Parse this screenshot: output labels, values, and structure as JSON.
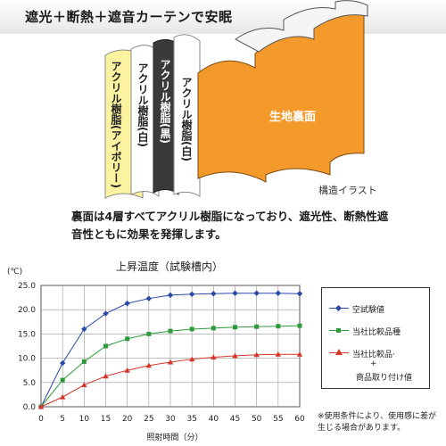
{
  "banner": {
    "title": "遮光＋断熱＋遮音カーテンで安眠"
  },
  "structure": {
    "layers": [
      {
        "label": "アクリル樹脂(アイボリー)",
        "color": "#fbf3a0"
      },
      {
        "label": "アクリル樹脂(白)",
        "color": "#ffffff"
      },
      {
        "label": "アクリル樹脂(黒)",
        "color": "#3a3a3a"
      },
      {
        "label": "アクリル樹脂(白)",
        "color": "#ffffff"
      },
      {
        "label": "生地裏面",
        "color": "#f39a2b"
      }
    ],
    "caption": "構造イラスト"
  },
  "description": "裏面は4層すべてアクリル樹脂になっており、遮光性、断熱性遮音性ともに効果を発揮します。",
  "footnote": "※使用条件により、使用感に差が生じる場合があります。",
  "chart_data": {
    "type": "line",
    "title": "上昇温度（試験槽内）",
    "ylabel": "(℃)",
    "xlabel": "照射時間（分）",
    "x": [
      0,
      5,
      10,
      15,
      20,
      25,
      30,
      35,
      40,
      45,
      50,
      55,
      60
    ],
    "xlim": [
      0,
      60
    ],
    "ylim": [
      0,
      25
    ],
    "yticks": [
      "0.0",
      "5.0",
      "10.0",
      "15.0",
      "20.0",
      "25.0"
    ],
    "grid": true,
    "legend_position": "right",
    "series": [
      {
        "name": "空試験値",
        "color": "#2b4aa8",
        "marker": "diamond",
        "values": [
          0,
          9,
          16,
          19.2,
          21.3,
          22.3,
          23.0,
          23.2,
          23.3,
          23.4,
          23.4,
          23.4,
          23.3
        ]
      },
      {
        "name": "当社比較品種",
        "color": "#2f9a3c",
        "marker": "square",
        "values": [
          0,
          5.5,
          9.3,
          12.5,
          14.0,
          15.0,
          15.6,
          16.0,
          16.2,
          16.4,
          16.5,
          16.6,
          16.7
        ]
      },
      {
        "name": "当社比較品＋商品取り付け値",
        "legend_lines": [
          "当社比較品·",
          "+",
          "商品取り付け値"
        ],
        "color": "#d6362a",
        "marker": "triangle",
        "values": [
          0,
          2.0,
          4.5,
          6.3,
          7.5,
          8.5,
          9.2,
          9.8,
          10.2,
          10.5,
          10.7,
          10.8,
          10.8
        ]
      }
    ]
  }
}
